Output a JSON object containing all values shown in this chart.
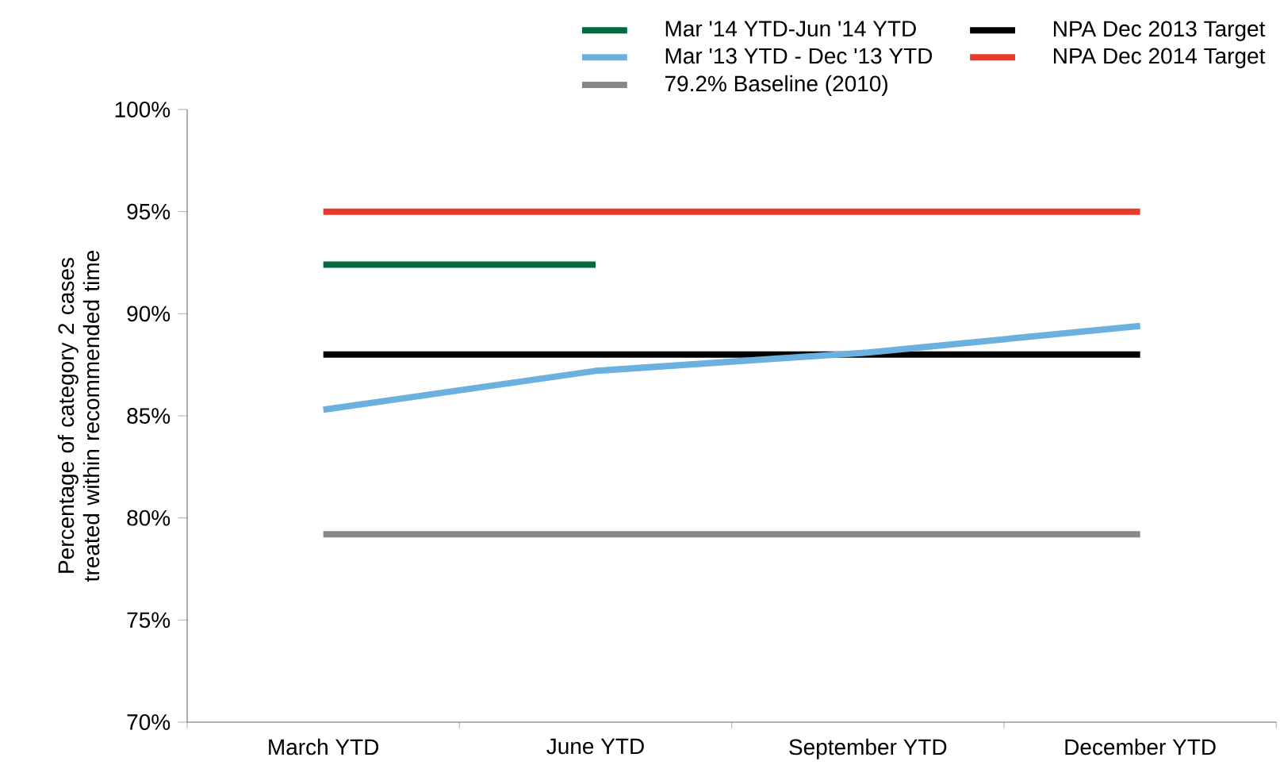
{
  "chart_data": {
    "type": "line",
    "ylabel": "Percentage of category 2 cases treated within recommended time",
    "categories": [
      "March YTD",
      "June YTD",
      "September YTD",
      "December YTD"
    ],
    "series": [
      {
        "name": "Mar '14 YTD-Jun '14 YTD",
        "color": "#006b3f",
        "values": [
          92.4,
          92.4,
          null,
          null
        ]
      },
      {
        "name": "NPA Dec 2013 Target",
        "color": "#000000",
        "values": [
          88.0,
          88.0,
          88.0,
          88.0
        ]
      },
      {
        "name": "Mar '13 YTD - Dec '13 YTD",
        "color": "#6cb0e0",
        "values": [
          85.3,
          87.2,
          88.1,
          89.4
        ]
      },
      {
        "name": "NPA Dec 2014 Target",
        "color": "#e8392a",
        "values": [
          95.0,
          95.0,
          95.0,
          95.0
        ]
      },
      {
        "name": "79.2% Baseline (2010)",
        "color": "#888888",
        "values": [
          79.2,
          79.2,
          79.2,
          79.2
        ]
      }
    ],
    "ylim": [
      70,
      100
    ],
    "yticks": [
      {
        "value": 70,
        "label": "70%"
      },
      {
        "value": 75,
        "label": "75%"
      },
      {
        "value": 80,
        "label": "80%"
      },
      {
        "value": 85,
        "label": "85%"
      },
      {
        "value": 90,
        "label": "90%"
      },
      {
        "value": 95,
        "label": "95%"
      },
      {
        "value": 100,
        "label": "100%"
      }
    ],
    "legend": "top",
    "grid": false,
    "marker": "none",
    "line_style": "solid"
  }
}
